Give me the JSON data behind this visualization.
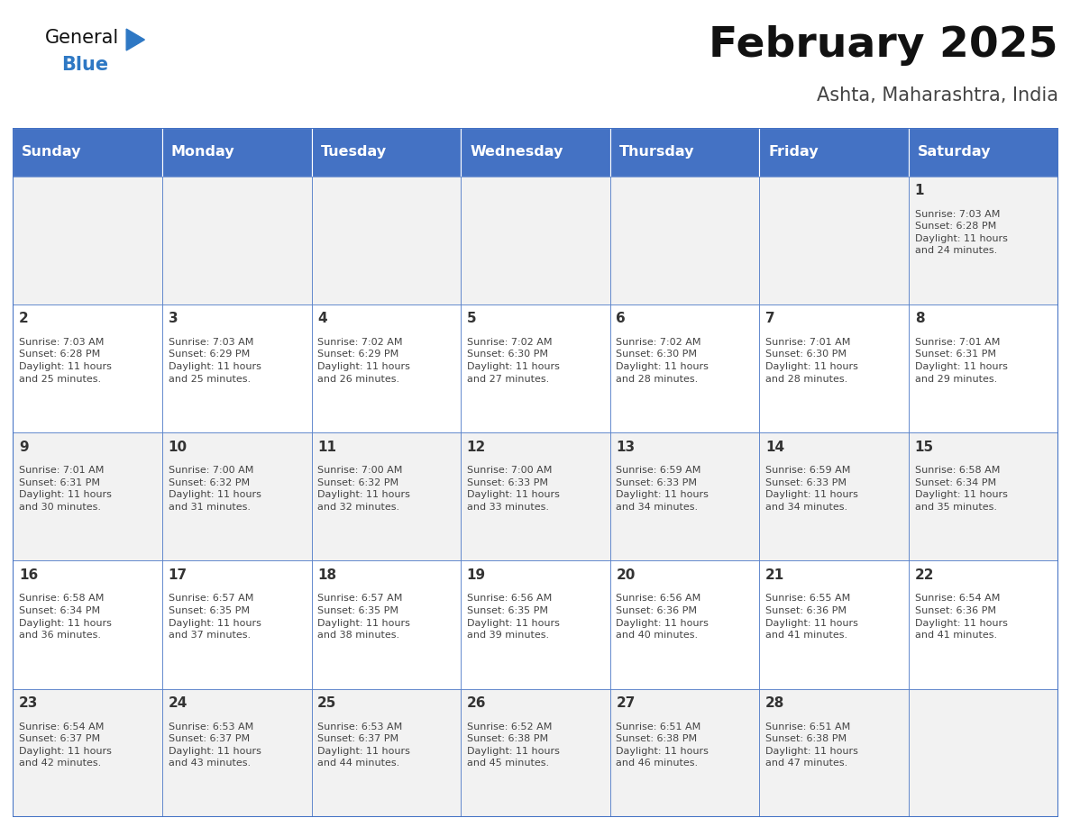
{
  "title": "February 2025",
  "subtitle": "Ashta, Maharashtra, India",
  "header_bg_color": "#4472C4",
  "header_text_color": "#FFFFFF",
  "day_names": [
    "Sunday",
    "Monday",
    "Tuesday",
    "Wednesday",
    "Thursday",
    "Friday",
    "Saturday"
  ],
  "cell_bg_even": "#F2F2F2",
  "cell_bg_odd": "#FFFFFF",
  "cell_border_color": "#4472C4",
  "day_num_color": "#333333",
  "text_color": "#444444",
  "title_color": "#111111",
  "subtitle_color": "#444444",
  "logo_general_color": "#111111",
  "logo_blue_color": "#2E78C4",
  "calendar_data": [
    [
      {
        "day": null,
        "info": null
      },
      {
        "day": null,
        "info": null
      },
      {
        "day": null,
        "info": null
      },
      {
        "day": null,
        "info": null
      },
      {
        "day": null,
        "info": null
      },
      {
        "day": null,
        "info": null
      },
      {
        "day": 1,
        "info": "Sunrise: 7:03 AM\nSunset: 6:28 PM\nDaylight: 11 hours\nand 24 minutes."
      }
    ],
    [
      {
        "day": 2,
        "info": "Sunrise: 7:03 AM\nSunset: 6:28 PM\nDaylight: 11 hours\nand 25 minutes."
      },
      {
        "day": 3,
        "info": "Sunrise: 7:03 AM\nSunset: 6:29 PM\nDaylight: 11 hours\nand 25 minutes."
      },
      {
        "day": 4,
        "info": "Sunrise: 7:02 AM\nSunset: 6:29 PM\nDaylight: 11 hours\nand 26 minutes."
      },
      {
        "day": 5,
        "info": "Sunrise: 7:02 AM\nSunset: 6:30 PM\nDaylight: 11 hours\nand 27 minutes."
      },
      {
        "day": 6,
        "info": "Sunrise: 7:02 AM\nSunset: 6:30 PM\nDaylight: 11 hours\nand 28 minutes."
      },
      {
        "day": 7,
        "info": "Sunrise: 7:01 AM\nSunset: 6:30 PM\nDaylight: 11 hours\nand 28 minutes."
      },
      {
        "day": 8,
        "info": "Sunrise: 7:01 AM\nSunset: 6:31 PM\nDaylight: 11 hours\nand 29 minutes."
      }
    ],
    [
      {
        "day": 9,
        "info": "Sunrise: 7:01 AM\nSunset: 6:31 PM\nDaylight: 11 hours\nand 30 minutes."
      },
      {
        "day": 10,
        "info": "Sunrise: 7:00 AM\nSunset: 6:32 PM\nDaylight: 11 hours\nand 31 minutes."
      },
      {
        "day": 11,
        "info": "Sunrise: 7:00 AM\nSunset: 6:32 PM\nDaylight: 11 hours\nand 32 minutes."
      },
      {
        "day": 12,
        "info": "Sunrise: 7:00 AM\nSunset: 6:33 PM\nDaylight: 11 hours\nand 33 minutes."
      },
      {
        "day": 13,
        "info": "Sunrise: 6:59 AM\nSunset: 6:33 PM\nDaylight: 11 hours\nand 34 minutes."
      },
      {
        "day": 14,
        "info": "Sunrise: 6:59 AM\nSunset: 6:33 PM\nDaylight: 11 hours\nand 34 minutes."
      },
      {
        "day": 15,
        "info": "Sunrise: 6:58 AM\nSunset: 6:34 PM\nDaylight: 11 hours\nand 35 minutes."
      }
    ],
    [
      {
        "day": 16,
        "info": "Sunrise: 6:58 AM\nSunset: 6:34 PM\nDaylight: 11 hours\nand 36 minutes."
      },
      {
        "day": 17,
        "info": "Sunrise: 6:57 AM\nSunset: 6:35 PM\nDaylight: 11 hours\nand 37 minutes."
      },
      {
        "day": 18,
        "info": "Sunrise: 6:57 AM\nSunset: 6:35 PM\nDaylight: 11 hours\nand 38 minutes."
      },
      {
        "day": 19,
        "info": "Sunrise: 6:56 AM\nSunset: 6:35 PM\nDaylight: 11 hours\nand 39 minutes."
      },
      {
        "day": 20,
        "info": "Sunrise: 6:56 AM\nSunset: 6:36 PM\nDaylight: 11 hours\nand 40 minutes."
      },
      {
        "day": 21,
        "info": "Sunrise: 6:55 AM\nSunset: 6:36 PM\nDaylight: 11 hours\nand 41 minutes."
      },
      {
        "day": 22,
        "info": "Sunrise: 6:54 AM\nSunset: 6:36 PM\nDaylight: 11 hours\nand 41 minutes."
      }
    ],
    [
      {
        "day": 23,
        "info": "Sunrise: 6:54 AM\nSunset: 6:37 PM\nDaylight: 11 hours\nand 42 minutes."
      },
      {
        "day": 24,
        "info": "Sunrise: 6:53 AM\nSunset: 6:37 PM\nDaylight: 11 hours\nand 43 minutes."
      },
      {
        "day": 25,
        "info": "Sunrise: 6:53 AM\nSunset: 6:37 PM\nDaylight: 11 hours\nand 44 minutes."
      },
      {
        "day": 26,
        "info": "Sunrise: 6:52 AM\nSunset: 6:38 PM\nDaylight: 11 hours\nand 45 minutes."
      },
      {
        "day": 27,
        "info": "Sunrise: 6:51 AM\nSunset: 6:38 PM\nDaylight: 11 hours\nand 46 minutes."
      },
      {
        "day": 28,
        "info": "Sunrise: 6:51 AM\nSunset: 6:38 PM\nDaylight: 11 hours\nand 47 minutes."
      },
      {
        "day": null,
        "info": null
      }
    ]
  ]
}
